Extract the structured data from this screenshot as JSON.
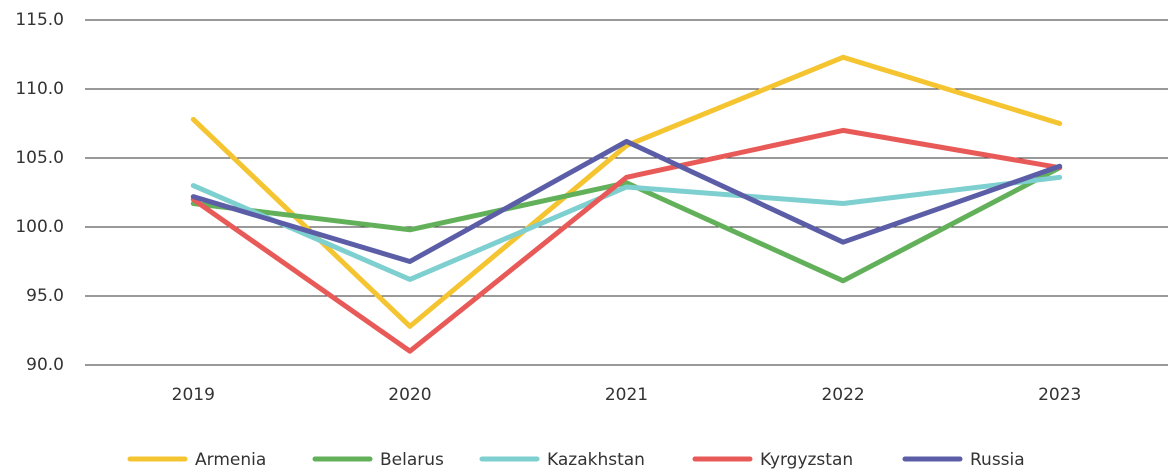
{
  "chart_data": {
    "type": "line",
    "categories": [
      "2019",
      "2020",
      "2021",
      "2022",
      "2023"
    ],
    "series": [
      {
        "name": "Armenia",
        "color": "#f5c431",
        "values": [
          107.8,
          92.8,
          105.9,
          112.3,
          107.5
        ]
      },
      {
        "name": "Belarus",
        "color": "#62b15a",
        "values": [
          101.7,
          99.8,
          103.2,
          96.1,
          104.3
        ]
      },
      {
        "name": "Kazakhstan",
        "color": "#7ecfcf",
        "values": [
          103.0,
          96.2,
          102.9,
          101.7,
          103.6
        ]
      },
      {
        "name": "Kyrgyzstan",
        "color": "#e85a58",
        "values": [
          102.0,
          91.0,
          103.6,
          107.0,
          104.3
        ]
      },
      {
        "name": "Russia",
        "color": "#5b5ea6",
        "values": [
          102.2,
          97.5,
          106.2,
          98.9,
          104.4
        ]
      }
    ],
    "ylim": [
      90,
      115
    ],
    "yticks": [
      {
        "value": 90,
        "label": "90.0"
      },
      {
        "value": 95,
        "label": "95.0"
      },
      {
        "value": 100,
        "label": "100.0"
      },
      {
        "value": 105,
        "label": "105.0"
      },
      {
        "value": 110,
        "label": "110.0"
      },
      {
        "value": 115,
        "label": "115.0"
      }
    ],
    "grid": true,
    "legend": "bottom"
  }
}
